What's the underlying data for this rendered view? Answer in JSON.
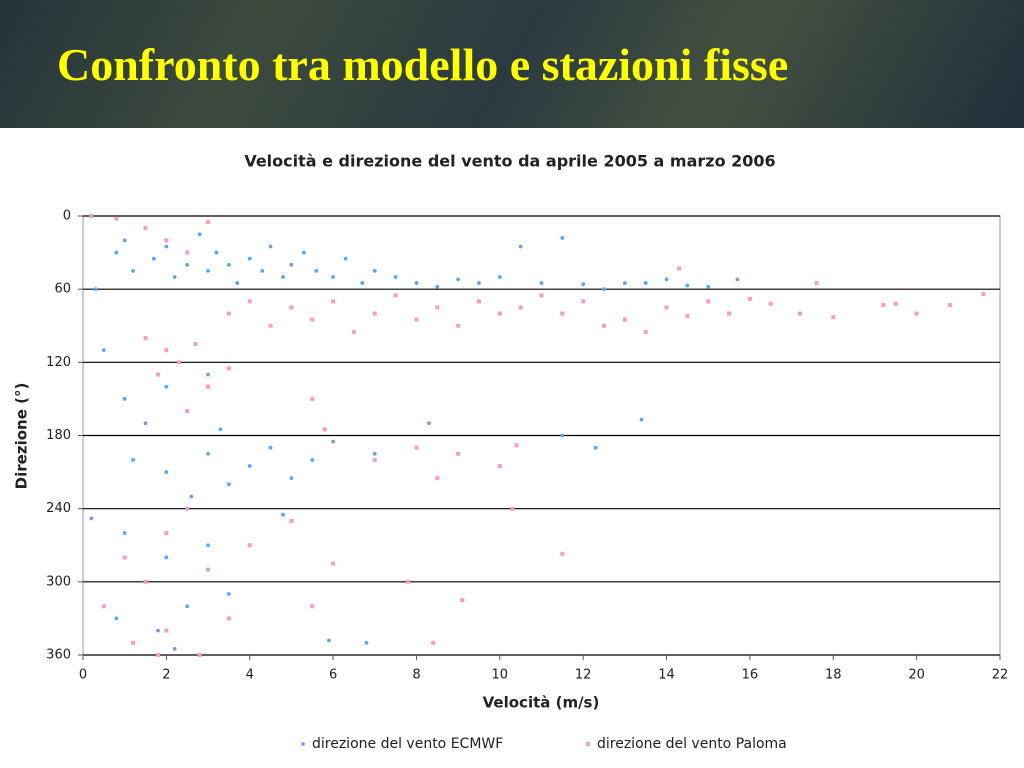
{
  "slide_title": "Confronto tra modello e stazioni fisse",
  "chart_data": {
    "type": "scatter",
    "title": "Velocità e direzione del vento da aprile 2005 a marzo 2006",
    "x_label": "Velocità (m/s)",
    "y_label": "Direzione (°)",
    "xlim": [
      0,
      22
    ],
    "xticks": [
      0,
      2,
      4,
      6,
      8,
      10,
      12,
      14,
      16,
      18,
      20,
      22
    ],
    "ylim": [
      360,
      0
    ],
    "yticks": [
      0,
      60,
      120,
      180,
      240,
      300,
      360
    ],
    "grid": true,
    "legend": "bottom",
    "series": [
      {
        "name": "direzione del vento ECMWF",
        "color": "#5fa3ec",
        "marker": "circle",
        "x": [
          0.3,
          0.5,
          0.8,
          1,
          1.2,
          1.5,
          1.7,
          2,
          2.2,
          2.5,
          2.8,
          3,
          3.2,
          3.5,
          3.7,
          4,
          4.3,
          4.5,
          4.8,
          5,
          5.3,
          5.6,
          6,
          6.3,
          6.7,
          7,
          7.5,
          8,
          8.5,
          9,
          9.5,
          10,
          10.5,
          11,
          11.5,
          12,
          12.5,
          13,
          13.5,
          14,
          14.5,
          15,
          15.7,
          1,
          1.5,
          2,
          2.5,
          3,
          3.3,
          1.2,
          2,
          2.6,
          3,
          3.5,
          4,
          4.5,
          5,
          5.5,
          6,
          7,
          8.3,
          11.5,
          12.3,
          13.4,
          1,
          1.5,
          2,
          2.5,
          1.8,
          2.2,
          3,
          3.5,
          0.8,
          4.8,
          6.8,
          5.9,
          0.2
        ],
        "values": [
          60,
          110,
          30,
          20,
          45,
          10,
          35,
          25,
          50,
          40,
          15,
          45,
          30,
          40,
          55,
          35,
          45,
          25,
          50,
          40,
          30,
          45,
          50,
          35,
          55,
          45,
          50,
          55,
          58,
          52,
          55,
          50,
          25,
          55,
          18,
          56,
          60,
          55,
          55,
          52,
          57,
          58,
          52,
          150,
          170,
          140,
          160,
          130,
          175,
          200,
          210,
          230,
          195,
          220,
          205,
          190,
          215,
          200,
          185,
          195,
          170,
          180,
          190,
          167,
          260,
          300,
          280,
          320,
          340,
          355,
          270,
          310,
          330,
          245,
          350,
          348,
          248
        ]
      },
      {
        "name": "direzione del vento Paloma",
        "color": "#f59cc9",
        "marker": "square",
        "x": [
          0.2,
          0.8,
          1.5,
          2,
          2.5,
          3,
          3.5,
          4,
          4.5,
          5,
          5.5,
          6,
          6.5,
          7,
          7.5,
          8,
          8.5,
          9,
          9.5,
          10,
          10.5,
          11,
          11.5,
          12,
          12.5,
          13,
          13.5,
          14,
          14.5,
          15,
          15.5,
          16,
          16.5,
          17.2,
          17.6,
          18,
          19.2,
          19.5,
          20,
          20.8,
          21.6,
          14.3,
          2,
          2.3,
          2.7,
          1.8,
          3,
          2.5,
          3.5,
          5.5,
          5.8,
          1.5,
          7,
          8,
          9,
          10,
          10.4,
          8.5,
          10.3,
          11.5,
          1,
          1.5,
          2,
          2.5,
          3,
          4,
          5,
          6,
          7.8,
          9.1,
          1.2,
          2,
          2.8,
          3.5,
          5.5,
          8.4,
          0.5,
          1.8
        ],
        "values": [
          0,
          2,
          10,
          20,
          30,
          5,
          80,
          70,
          90,
          75,
          85,
          70,
          95,
          80,
          65,
          85,
          75,
          90,
          70,
          80,
          75,
          65,
          80,
          70,
          90,
          85,
          95,
          75,
          82,
          70,
          80,
          68,
          72,
          80,
          55,
          83,
          73,
          72,
          80,
          73,
          64,
          43,
          110,
          120,
          105,
          130,
          140,
          160,
          125,
          150,
          175,
          100,
          200,
          190,
          195,
          205,
          188,
          215,
          240,
          277,
          280,
          300,
          260,
          240,
          290,
          270,
          250,
          285,
          300,
          315,
          350,
          340,
          360,
          330,
          320,
          350,
          320,
          360
        ]
      }
    ]
  }
}
